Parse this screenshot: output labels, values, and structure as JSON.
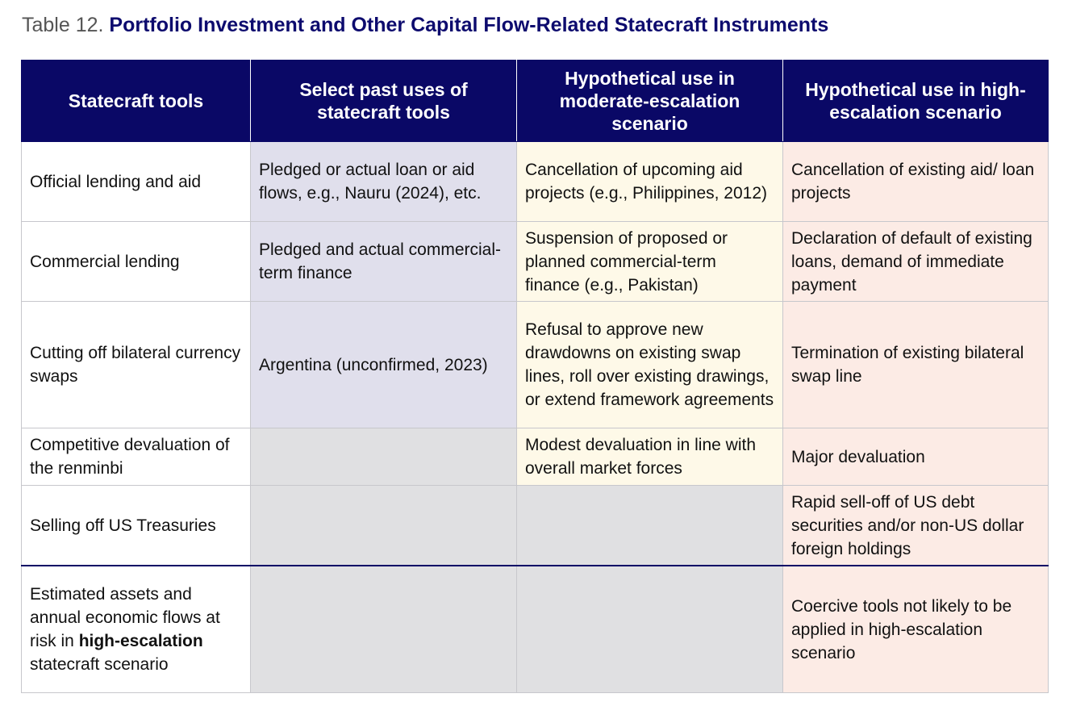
{
  "title": {
    "prefix": "Table 12.",
    "main": "Portfolio Investment and Other Capital Flow-Related Statecraft Instruments"
  },
  "table": {
    "headers": [
      "Statecraft tools",
      "Select past uses of statecraft tools",
      "Hypothetical use in moderate-escalation scenario",
      "Hypothetical use in high-escalation scenario"
    ],
    "rows": [
      {
        "tool": "Official lending and aid",
        "past": "Pledged or actual loan or aid flows, e.g., Nauru (2024), etc.",
        "moderate": "Cancellation of upcoming aid projects (e.g., Philippines, 2012)",
        "high": "Cancellation of existing aid/ loan projects"
      },
      {
        "tool": "Commercial lending",
        "past": "Pledged and actual commercial-term finance",
        "moderate": "Suspension of proposed or planned commercial-term finance (e.g., Pakistan)",
        "high": "Declaration of default of existing loans, demand of immediate payment"
      },
      {
        "tool": "Cutting off bilateral currency swaps",
        "past": "Argentina (unconfirmed, 2023)",
        "moderate": "Refusal to approve new drawdowns on existing swap lines, roll over existing drawings, or extend framework agreements",
        "high": "Termination of existing bilateral swap line"
      },
      {
        "tool": "Competitive devaluation of the renminbi",
        "past": "",
        "moderate": "Modest devaluation in line with overall market forces",
        "high": "Major devaluation"
      },
      {
        "tool": "Selling off US Treasuries",
        "past": "",
        "moderate": "",
        "high": "Rapid sell-off of US debt securities and/or non-US dollar foreign holdings"
      }
    ],
    "summary": {
      "tool_part1": "Estimated assets and annual economic flows at risk in ",
      "tool_bold": "high-escalation",
      "tool_part2": " statecraft scenario",
      "past": "",
      "moderate": "",
      "high": "Coercive tools not likely to be applied in high-escalation scenario"
    }
  },
  "colors": {
    "header_bg": "#0a0866",
    "title_accent": "#0d0b6e",
    "past_col_bg": "#e0dfec",
    "moderate_col_bg": "#fef9e8",
    "high_col_bg": "#fcebe5",
    "empty_cell_bg": "#e0e0e2"
  }
}
